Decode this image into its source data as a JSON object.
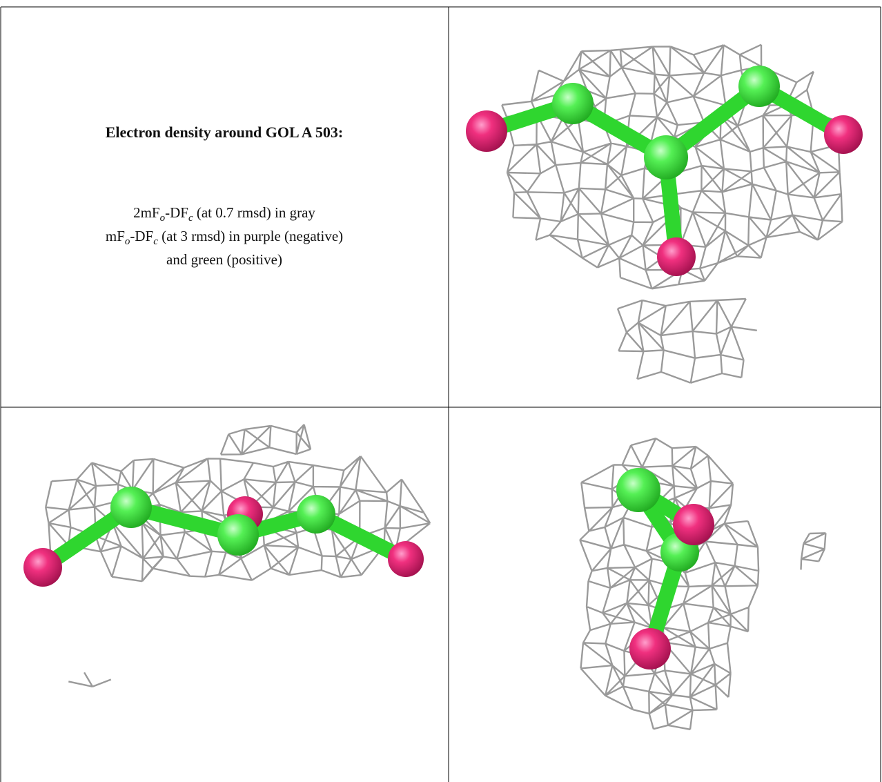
{
  "header": {
    "title": "Electron density around GOL A 503:"
  },
  "caption": {
    "lines": [
      [
        "2mF",
        "o",
        "-DF",
        "c",
        " (at 0.7 rmsd) in gray"
      ],
      [
        "mF",
        "o",
        "-DF",
        "c",
        " (at 3 rmsd) in purple (negative)"
      ],
      [
        "and green (positive)"
      ]
    ]
  }
}
